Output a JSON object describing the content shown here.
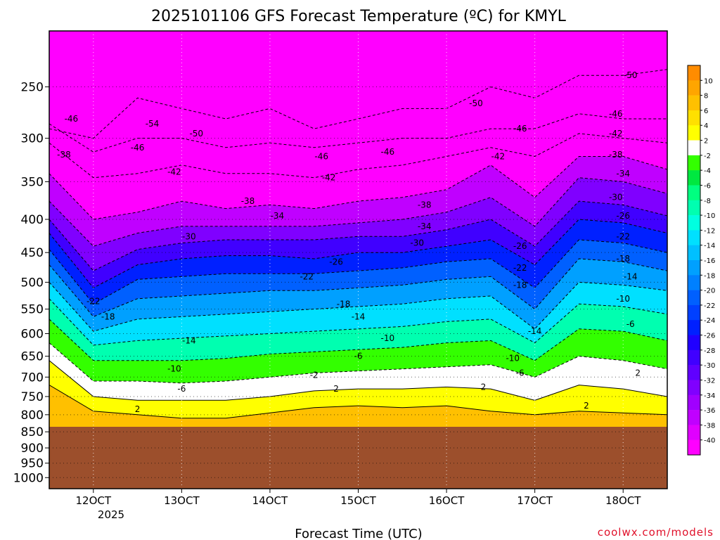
{
  "chart_data": {
    "type": "heatmap",
    "title": "2025101106 GFS Forecast Temperature (ºC) for KMYL",
    "xlabel": "Forecast Time (UTC)",
    "credit": "coolwx.com/models",
    "y_axis": {
      "scale": "log-pressure",
      "ticks": [
        250,
        300,
        350,
        400,
        450,
        500,
        550,
        600,
        650,
        700,
        750,
        800,
        850,
        900,
        950,
        1000
      ],
      "range": [
        1000,
        200
      ],
      "below_ground_from": 835
    },
    "x_axis": {
      "range_hours": [
        0,
        84
      ],
      "ticks": [
        {
          "label": "12OCT",
          "hour": 6
        },
        {
          "label": "13OCT",
          "hour": 18
        },
        {
          "label": "14OCT",
          "hour": 30
        },
        {
          "label": "15OCT",
          "hour": 42
        },
        {
          "label": "16OCT",
          "hour": 54
        },
        {
          "label": "17OCT",
          "hour": 66
        },
        {
          "label": "18OCT",
          "hour": 78
        }
      ],
      "sublabel": "2025"
    },
    "colorbar": {
      "levels": [
        10,
        8,
        6,
        4,
        2,
        -2,
        -4,
        -6,
        -8,
        -10,
        -12,
        -14,
        -16,
        -18,
        -20,
        -22,
        -24,
        -26,
        -28,
        -30,
        -32,
        -34,
        -36,
        -38,
        -40
      ],
      "colors": [
        "#ff8c00",
        "#ffa500",
        "#ffc000",
        "#ffe000",
        "#ffff00",
        "#ffffff",
        "#33ff00",
        "#00e840",
        "#00ff80",
        "#00ffb0",
        "#00ffe0",
        "#00e0ff",
        "#00c0ff",
        "#00a0ff",
        "#0080ff",
        "#0060ff",
        "#0040ff",
        "#0020ff",
        "#2000ff",
        "#4000ff",
        "#6000ff",
        "#8000ff",
        "#a000ff",
        "#c000ff",
        "#e000ff",
        "#ff00ff"
      ]
    },
    "temperature_profile": {
      "hours": [
        0,
        6,
        12,
        18,
        24,
        30,
        36,
        42,
        48,
        54,
        60,
        66,
        72,
        78,
        84
      ],
      "isotherm_pressures": {
        "-50": [
          290,
          300,
          260,
          270,
          280,
          270,
          290,
          280,
          270,
          270,
          250,
          260,
          240,
          240,
          235
        ],
        "-46": [
          285,
          315,
          300,
          300,
          310,
          305,
          310,
          305,
          300,
          300,
          290,
          290,
          275,
          280,
          280
        ],
        "-42": [
          305,
          345,
          340,
          330,
          340,
          340,
          345,
          335,
          330,
          320,
          310,
          320,
          295,
          300,
          305
        ],
        "-38": [
          340,
          400,
          390,
          375,
          385,
          380,
          385,
          375,
          370,
          360,
          330,
          370,
          320,
          320,
          335
        ],
        "-34": [
          375,
          440,
          420,
          410,
          410,
          410,
          410,
          405,
          400,
          390,
          370,
          410,
          345,
          350,
          365
        ],
        "-30": [
          400,
          480,
          445,
          435,
          430,
          430,
          430,
          425,
          425,
          415,
          400,
          440,
          375,
          380,
          395
        ],
        "-26": [
          420,
          510,
          470,
          460,
          455,
          455,
          460,
          450,
          450,
          440,
          430,
          470,
          400,
          405,
          420
        ],
        "-22": [
          445,
          540,
          495,
          490,
          485,
          485,
          485,
          480,
          475,
          465,
          460,
          510,
          430,
          435,
          450
        ],
        "-18": [
          470,
          565,
          530,
          525,
          520,
          515,
          515,
          510,
          505,
          495,
          490,
          550,
          460,
          465,
          480
        ],
        "-14": [
          500,
          595,
          570,
          565,
          560,
          555,
          550,
          545,
          540,
          530,
          525,
          590,
          500,
          505,
          515
        ],
        "-10": [
          530,
          625,
          615,
          610,
          605,
          600,
          595,
          590,
          585,
          575,
          570,
          620,
          540,
          545,
          560
        ],
        "-6": [
          570,
          660,
          660,
          660,
          655,
          645,
          640,
          635,
          630,
          620,
          615,
          660,
          590,
          595,
          615
        ],
        "-2": [
          620,
          710,
          710,
          715,
          710,
          700,
          690,
          685,
          680,
          675,
          670,
          700,
          650,
          660,
          680
        ],
        "2": [
          660,
          750,
          760,
          760,
          760,
          750,
          735,
          730,
          730,
          725,
          730,
          760,
          720,
          730,
          750
        ],
        "6": [
          720,
          790,
          800,
          810,
          810,
          795,
          780,
          775,
          780,
          775,
          790,
          800,
          790,
          795,
          800
        ]
      }
    },
    "contour_labels": [
      {
        "value": "-46",
        "hour": 3,
        "p": 280
      },
      {
        "value": "-54",
        "hour": 14,
        "p": 285
      },
      {
        "value": "-50",
        "hour": 20,
        "p": 295
      },
      {
        "value": "-46",
        "hour": 12,
        "p": 310
      },
      {
        "value": "-38",
        "hour": 2,
        "p": 318
      },
      {
        "value": "-42",
        "hour": 17,
        "p": 338
      },
      {
        "value": "-46",
        "hour": 37,
        "p": 320
      },
      {
        "value": "-46",
        "hour": 46,
        "p": 315
      },
      {
        "value": "-42",
        "hour": 38,
        "p": 345
      },
      {
        "value": "-38",
        "hour": 27,
        "p": 375
      },
      {
        "value": "-34",
        "hour": 31,
        "p": 395
      },
      {
        "value": "-30",
        "hour": 19,
        "p": 425
      },
      {
        "value": "-26",
        "hour": 39,
        "p": 465
      },
      {
        "value": "-22",
        "hour": 35,
        "p": 490
      },
      {
        "value": "-22",
        "hour": 6,
        "p": 535
      },
      {
        "value": "-18",
        "hour": 8,
        "p": 565
      },
      {
        "value": "-18",
        "hour": 40,
        "p": 540
      },
      {
        "value": "-14",
        "hour": 42,
        "p": 565
      },
      {
        "value": "-14",
        "hour": 19,
        "p": 615
      },
      {
        "value": "-10",
        "hour": 46,
        "p": 610
      },
      {
        "value": "-10",
        "hour": 17,
        "p": 680
      },
      {
        "value": "-6",
        "hour": 18,
        "p": 730
      },
      {
        "value": "-6",
        "hour": 42,
        "p": 650
      },
      {
        "value": "-2",
        "hour": 36,
        "p": 695
      },
      {
        "value": "2",
        "hour": 39,
        "p": 730
      },
      {
        "value": "2",
        "hour": 12,
        "p": 785
      },
      {
        "value": "-38",
        "hour": 51,
        "p": 380
      },
      {
        "value": "-34",
        "hour": 51,
        "p": 410
      },
      {
        "value": "-30",
        "hour": 50,
        "p": 435
      },
      {
        "value": "-50",
        "hour": 58,
        "p": 265
      },
      {
        "value": "-46",
        "hour": 64,
        "p": 290
      },
      {
        "value": "-42",
        "hour": 61,
        "p": 320
      },
      {
        "value": "-26",
        "hour": 64,
        "p": 440
      },
      {
        "value": "-22",
        "hour": 64,
        "p": 475
      },
      {
        "value": "-18",
        "hour": 64,
        "p": 505
      },
      {
        "value": "-14",
        "hour": 66,
        "p": 595
      },
      {
        "value": "-10",
        "hour": 63,
        "p": 655
      },
      {
        "value": "-6",
        "hour": 64,
        "p": 690
      },
      {
        "value": "2",
        "hour": 59,
        "p": 725
      },
      {
        "value": "2",
        "hour": 73,
        "p": 775
      },
      {
        "value": "-50",
        "hour": 79,
        "p": 240
      },
      {
        "value": "-46",
        "hour": 77,
        "p": 275
      },
      {
        "value": "-42",
        "hour": 77,
        "p": 295
      },
      {
        "value": "-38",
        "hour": 77,
        "p": 318
      },
      {
        "value": "-34",
        "hour": 78,
        "p": 340
      },
      {
        "value": "-30",
        "hour": 77,
        "p": 370
      },
      {
        "value": "-26",
        "hour": 78,
        "p": 395
      },
      {
        "value": "-22",
        "hour": 78,
        "p": 425
      },
      {
        "value": "-18",
        "hour": 78,
        "p": 460
      },
      {
        "value": "-14",
        "hour": 79,
        "p": 490
      },
      {
        "value": "-10",
        "hour": 78,
        "p": 530
      },
      {
        "value": "-6",
        "hour": 79,
        "p": 580
      },
      {
        "value": "2",
        "hour": 80,
        "p": 690
      }
    ]
  }
}
